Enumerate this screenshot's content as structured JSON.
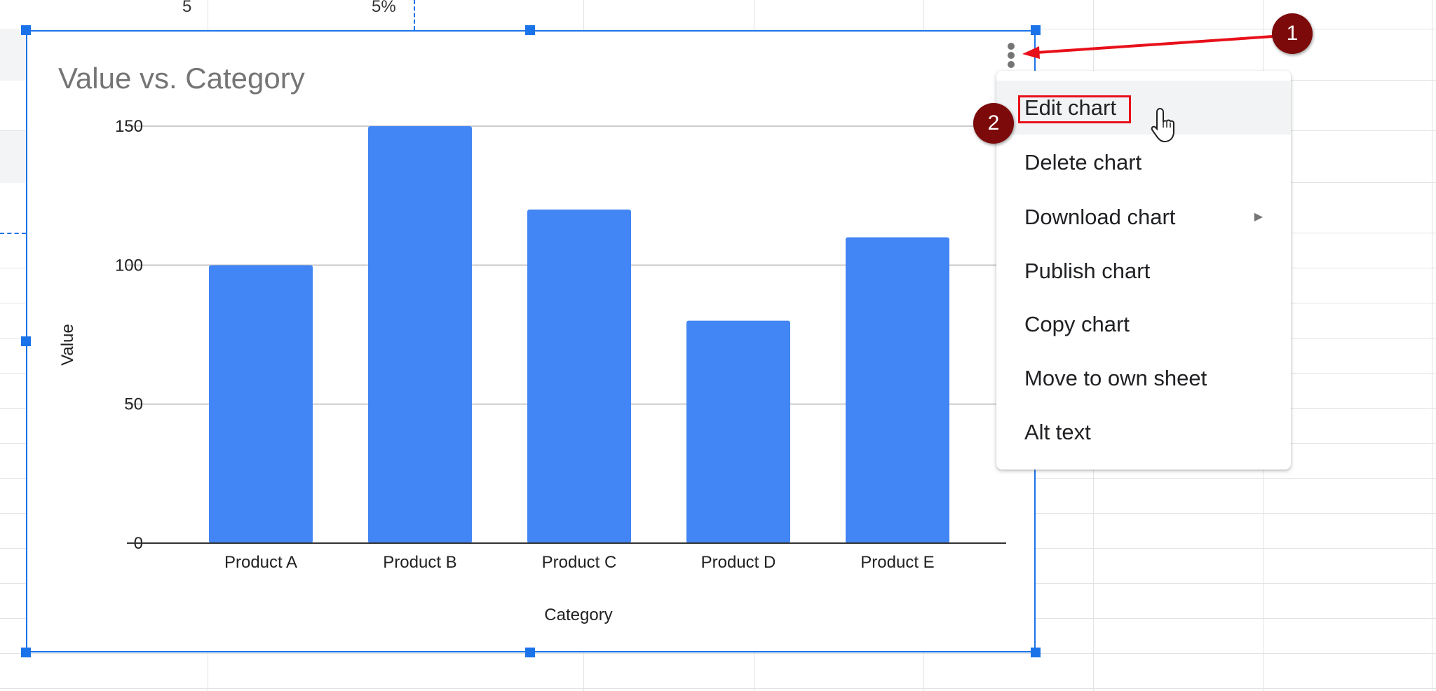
{
  "sheet": {
    "visible_cells": [
      "5",
      "5%"
    ]
  },
  "chart_data": {
    "type": "bar",
    "title": "Value vs. Category",
    "xlabel": "Category",
    "ylabel": "Value",
    "categories": [
      "Product A",
      "Product B",
      "Product C",
      "Product D",
      "Product E"
    ],
    "values": [
      100,
      150,
      120,
      80,
      110
    ],
    "ylim": [
      0,
      150
    ],
    "yticks": [
      0,
      50,
      100,
      150
    ],
    "grid": true,
    "legend": "none",
    "bar_color": "#4285f4"
  },
  "context_menu": {
    "items": [
      {
        "label": "Edit chart",
        "highlighted": true
      },
      {
        "label": "Delete chart"
      },
      {
        "label": "Download chart",
        "submenu": true
      },
      {
        "label": "Publish chart"
      },
      {
        "label": "Copy chart"
      },
      {
        "label": "Move to own sheet"
      },
      {
        "label": "Alt text"
      }
    ]
  },
  "annotations": {
    "step1": "1",
    "step2": "2",
    "badge_color": "#7d0a0a",
    "highlight_color": "#e8101a"
  },
  "icons": {
    "more": "more-vert-icon",
    "submenu": "triangle-right-icon",
    "cursor": "hand-pointer-icon"
  },
  "selection_color": "#1a73e8"
}
